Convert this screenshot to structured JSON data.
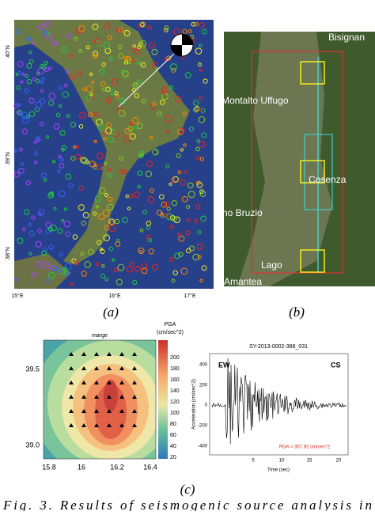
{
  "panel_a": {
    "lat_labels": [
      "40°N",
      "39°N",
      "38°N"
    ],
    "lon_labels": [
      "15°E",
      "16°E",
      "17°E"
    ],
    "caption": "(a)"
  },
  "panel_b": {
    "places": [
      "Bisignan",
      "Montalto Uffugo",
      "Cosenza",
      "no Bruzio",
      "Lago",
      "Amantea"
    ],
    "caption": "(b)"
  },
  "panel_c": {
    "contour": {
      "title": "marge",
      "colorbar_title": "PGA",
      "colorbar_unit": "(cm/sec^2)",
      "colorbar_ticks": [
        "200",
        "180",
        "160",
        "140",
        "120",
        "100",
        "80",
        "60",
        "40",
        "20"
      ],
      "yticks": [
        "39.5",
        "39.0"
      ],
      "xticks": [
        "15.8",
        "16",
        "16.2",
        "16.4"
      ]
    },
    "seismogram": {
      "title": "SY-2013-0002-388_031",
      "component": "EW",
      "station": "CS",
      "yticks": [
        "400",
        "200",
        "0",
        "-200",
        "-400"
      ],
      "ylabel": "Acceleration (cm/sec^2)",
      "xticks": [
        "5",
        "10",
        "15",
        "20"
      ],
      "xlabel": "Time (sec)",
      "pga": "PGA = 357.92 cm/sec^2"
    },
    "caption": "(c)"
  },
  "figure_caption": "Fig. 3. Results of seismogenic source analysis in"
}
